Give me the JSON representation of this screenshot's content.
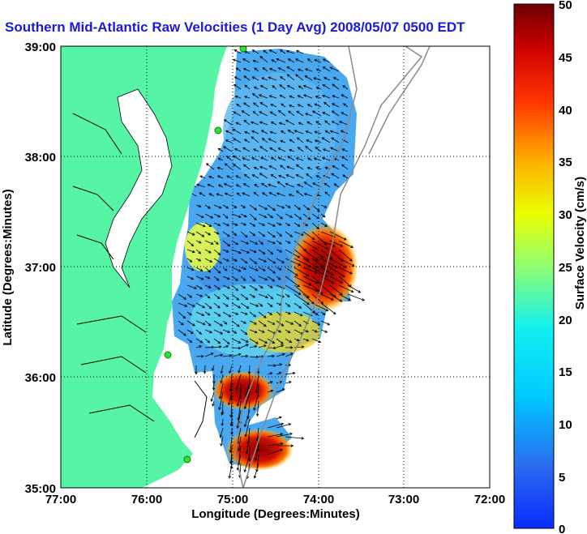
{
  "title": "Southern Mid-Atlantic Raw Velocities (1 Day Avg) 2008/05/07 0500 EDT",
  "map": {
    "xlabel": "Longitude (Degrees:Minutes)",
    "ylabel": "Latitude (Degrees:Minutes)",
    "x_ticks": [
      "77:00",
      "76:00",
      "75:00",
      "74:00",
      "73:00",
      "72:00"
    ],
    "y_ticks": [
      "39:00",
      "38:00",
      "37:00",
      "36:00",
      "35:00"
    ],
    "land_color": "#55f5a5",
    "station_color": "#2fe02f",
    "vector_color": "#000000"
  },
  "colorbar": {
    "label": "Surface Velocity (cm/s)",
    "ticks": [
      "50",
      "45",
      "40",
      "35",
      "30",
      "25",
      "20",
      "15",
      "10",
      "5",
      "0"
    ],
    "min": 0,
    "max": 50,
    "colormap": "jet"
  }
}
